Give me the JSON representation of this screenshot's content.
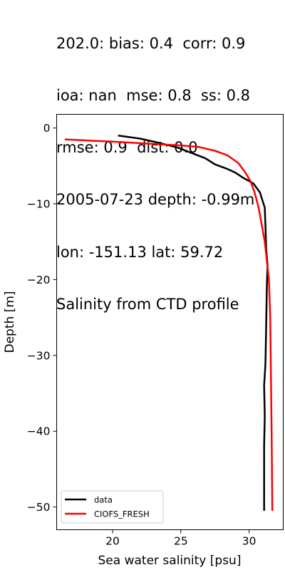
{
  "title_lines": [
    "202.0: bias: 0.4  corr: 0.9",
    "ioa: nan  mse: 0.8  ss: 0.8",
    "rmse: 0.9  dist: 0.0",
    "2005-07-23 depth: -0.99m",
    "lon: -151.13 lat: 59.72",
    "Salinity from CTD profile"
  ],
  "chart_data": {
    "type": "line",
    "title": "202.0: bias: 0.4  corr: 0.9\nioa: nan  mse: 0.8  ss: 0.8\nrmse: 0.9  dist: 0.0\n2005-07-23 depth: -0.99m\nlon: -151.13 lat: 59.72\nSalinity from CTD profile",
    "xlabel": "Sea water salinity [psu]",
    "ylabel": "Depth [m]",
    "xlim": [
      15.9,
      32.5
    ],
    "ylim": [
      -53.0,
      1.8
    ],
    "xticks": [
      20,
      25,
      30
    ],
    "yticks": [
      0,
      -10,
      -20,
      -30,
      -40,
      -50
    ],
    "ytick_labels": [
      "0",
      "−10",
      "−20",
      "−30",
      "−40",
      "−50"
    ],
    "legend_position": "lower left",
    "grid": false,
    "series": [
      {
        "name": "data",
        "color": "#000000",
        "points": [
          [
            20.4,
            -1.0
          ],
          [
            22.0,
            -1.4
          ],
          [
            23.5,
            -2.0
          ],
          [
            24.8,
            -2.6
          ],
          [
            25.8,
            -3.3
          ],
          [
            26.8,
            -4.0
          ],
          [
            27.5,
            -4.8
          ],
          [
            28.4,
            -5.4
          ],
          [
            29.0,
            -5.9
          ],
          [
            29.6,
            -6.6
          ],
          [
            30.3,
            -7.3
          ],
          [
            30.8,
            -8.5
          ],
          [
            31.0,
            -9.7
          ],
          [
            31.15,
            -10.5
          ],
          [
            31.2,
            -13.0
          ],
          [
            31.25,
            -16.0
          ],
          [
            31.35,
            -18.0
          ],
          [
            31.3,
            -21.0
          ],
          [
            31.25,
            -26.0
          ],
          [
            31.2,
            -31.0
          ],
          [
            31.1,
            -34.0
          ],
          [
            31.15,
            -38.0
          ],
          [
            31.1,
            -42.0
          ],
          [
            31.1,
            -46.0
          ],
          [
            31.1,
            -50.5
          ]
        ]
      },
      {
        "name": "CIOFS_FRESH",
        "color": "#ff0000",
        "points": [
          [
            16.5,
            -1.5
          ],
          [
            20.0,
            -1.8
          ],
          [
            23.0,
            -2.1
          ],
          [
            25.0,
            -2.3
          ],
          [
            26.3,
            -2.5
          ],
          [
            27.5,
            -3.0
          ],
          [
            28.4,
            -3.6
          ],
          [
            29.2,
            -4.6
          ],
          [
            29.7,
            -5.8
          ],
          [
            30.1,
            -7.0
          ],
          [
            30.4,
            -8.5
          ],
          [
            30.7,
            -10.5
          ],
          [
            30.95,
            -13.0
          ],
          [
            31.15,
            -15.0
          ],
          [
            31.3,
            -17.5
          ],
          [
            31.45,
            -20.0
          ],
          [
            31.55,
            -25.0
          ],
          [
            31.6,
            -33.0
          ],
          [
            31.65,
            -40.0
          ],
          [
            31.7,
            -50.5
          ]
        ]
      }
    ]
  }
}
